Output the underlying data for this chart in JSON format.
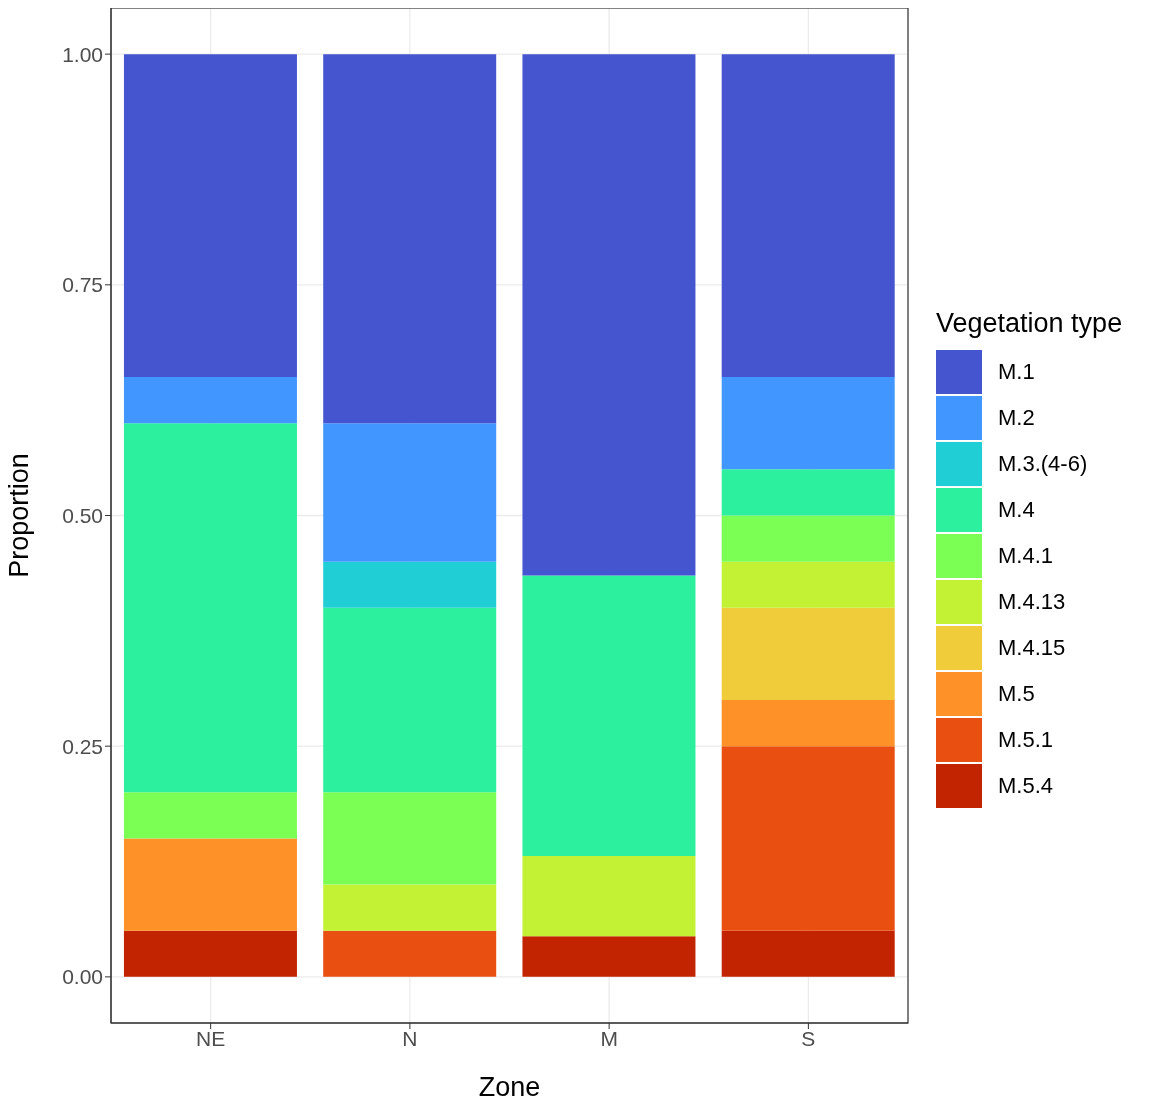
{
  "chart_data": {
    "type": "bar",
    "stacked": true,
    "xlabel": "Zone",
    "ylabel": "Proportion",
    "legend_title": "Vegetation type",
    "legend": "right",
    "grid": true,
    "categories": [
      "NE",
      "N",
      "M",
      "S"
    ],
    "ylim": [
      -0.05,
      1.05
    ],
    "yticks": [
      {
        "value": 0,
        "label": "0.00"
      },
      {
        "value": 0.25,
        "label": "0.25"
      },
      {
        "value": 0.5,
        "label": "0.50"
      },
      {
        "value": 0.75,
        "label": "0.75"
      },
      {
        "value": 1,
        "label": "1.00"
      }
    ],
    "series": [
      {
        "name": "M.5.4",
        "color": "#c22402",
        "values": [
          0.05,
          0,
          0.044,
          0.05
        ]
      },
      {
        "name": "M.5.1",
        "color": "#e94f11",
        "values": [
          0,
          0.05,
          0,
          0.2
        ]
      },
      {
        "name": "M.5",
        "color": "#fe9229",
        "values": [
          0.1,
          0,
          0,
          0.05
        ]
      },
      {
        "name": "M.4.15",
        "color": "#f0cb3a",
        "values": [
          0,
          0,
          0,
          0.1
        ]
      },
      {
        "name": "M.4.13",
        "color": "#c3f234",
        "values": [
          0,
          0.05,
          0.087,
          0.05
        ]
      },
      {
        "name": "M.4.1",
        "color": "#7cff55",
        "values": [
          0.05,
          0.1,
          0,
          0.05
        ]
      },
      {
        "name": "M.4",
        "color": "#2cf09e",
        "values": [
          0.4,
          0.2,
          0.304,
          0.05
        ]
      },
      {
        "name": "M.3.(4-6)",
        "color": "#1fcfd5",
        "values": [
          0,
          0.05,
          0,
          0
        ]
      },
      {
        "name": "M.2",
        "color": "#4196ff",
        "values": [
          0.05,
          0.15,
          0,
          0.1
        ]
      },
      {
        "name": "M.1",
        "color": "#4555cf",
        "values": [
          0.35,
          0.4,
          0.565,
          0.35
        ]
      }
    ]
  }
}
